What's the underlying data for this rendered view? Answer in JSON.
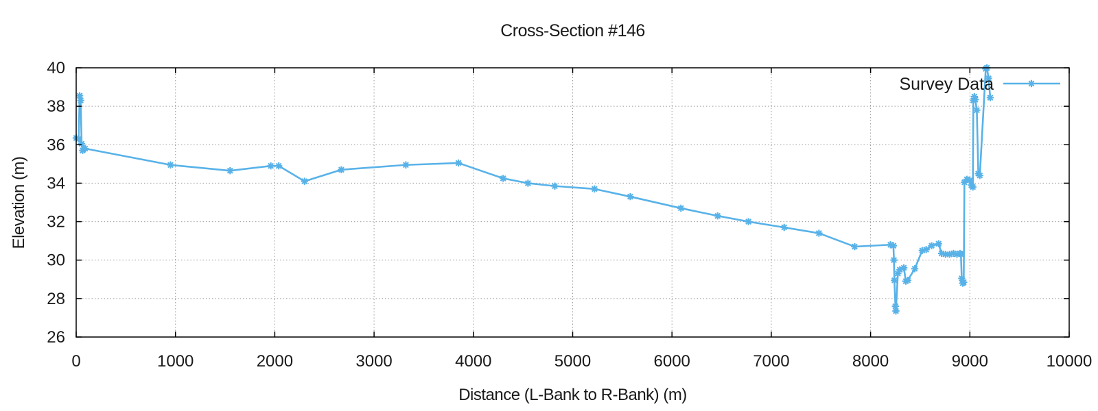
{
  "title": "Cross-Section #146",
  "colors": {
    "series": "#58b2e8",
    "grid": "#999999",
    "axis": "#000000",
    "text": "#1a1a1a",
    "background": "#ffffff"
  },
  "chart_data": {
    "type": "line",
    "title": "Cross-Section #146",
    "xlabel": "Distance (L-Bank to R-Bank) (m)",
    "ylabel": "Elevation (m)",
    "xlim": [
      0,
      10000
    ],
    "ylim": [
      26,
      40
    ],
    "x_ticks": [
      0,
      1000,
      2000,
      3000,
      4000,
      5000,
      6000,
      7000,
      8000,
      9000,
      10000
    ],
    "y_ticks": [
      26,
      28,
      30,
      32,
      34,
      36,
      38,
      40
    ],
    "grid": true,
    "legend_position": "top-right",
    "series": [
      {
        "name": "Survey Data",
        "color": "#58b2e8",
        "marker": "star",
        "points": [
          [
            0,
            36.35
          ],
          [
            25,
            36.3
          ],
          [
            35,
            38.55
          ],
          [
            45,
            38.3
          ],
          [
            55,
            36.05
          ],
          [
            65,
            35.7
          ],
          [
            90,
            35.8
          ],
          [
            950,
            34.95
          ],
          [
            1550,
            34.65
          ],
          [
            1960,
            34.9
          ],
          [
            2040,
            34.9
          ],
          [
            2300,
            34.1
          ],
          [
            2670,
            34.7
          ],
          [
            3320,
            34.95
          ],
          [
            3850,
            35.05
          ],
          [
            4300,
            34.25
          ],
          [
            4550,
            34.0
          ],
          [
            4820,
            33.85
          ],
          [
            5220,
            33.7
          ],
          [
            5580,
            33.3
          ],
          [
            6090,
            32.7
          ],
          [
            6460,
            32.3
          ],
          [
            6770,
            32.0
          ],
          [
            7130,
            31.7
          ],
          [
            7480,
            31.4
          ],
          [
            7840,
            30.7
          ],
          [
            8200,
            30.8
          ],
          [
            8230,
            30.75
          ],
          [
            8235,
            30.0
          ],
          [
            8240,
            28.95
          ],
          [
            8250,
            27.6
          ],
          [
            8255,
            27.35
          ],
          [
            8275,
            29.3
          ],
          [
            8295,
            29.5
          ],
          [
            8335,
            29.6
          ],
          [
            8355,
            28.9
          ],
          [
            8375,
            28.95
          ],
          [
            8445,
            29.55
          ],
          [
            8520,
            30.5
          ],
          [
            8560,
            30.55
          ],
          [
            8615,
            30.75
          ],
          [
            8685,
            30.85
          ],
          [
            8715,
            30.35
          ],
          [
            8755,
            30.3
          ],
          [
            8795,
            30.3
          ],
          [
            8835,
            30.35
          ],
          [
            8870,
            30.3
          ],
          [
            8900,
            30.35
          ],
          [
            8910,
            30.3
          ],
          [
            8918,
            29.05
          ],
          [
            8928,
            28.8
          ],
          [
            8938,
            28.85
          ],
          [
            8945,
            34.05
          ],
          [
            8970,
            34.2
          ],
          [
            9000,
            34.15
          ],
          [
            9015,
            33.9
          ],
          [
            9030,
            33.8
          ],
          [
            9035,
            38.3
          ],
          [
            9045,
            38.5
          ],
          [
            9055,
            38.35
          ],
          [
            9070,
            37.8
          ],
          [
            9085,
            34.5
          ],
          [
            9100,
            34.4
          ],
          [
            9160,
            39.95
          ],
          [
            9172,
            40.0
          ],
          [
            9188,
            39.45
          ],
          [
            9205,
            38.45
          ]
        ]
      }
    ]
  }
}
